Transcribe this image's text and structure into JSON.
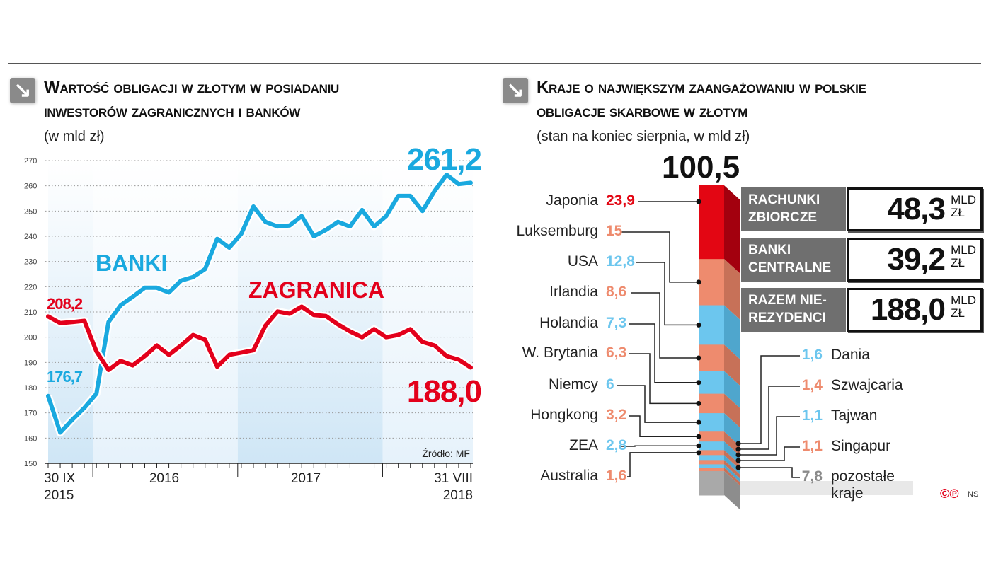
{
  "left": {
    "title_line1": "Wartość obligacji w złotym w posiadaniu",
    "title_line2": "inwestorów zagranicznych i banków",
    "subtitle": "(w mld zł)",
    "source": "Źródło: MF"
  },
  "right": {
    "title_line1": "Kraje o największym zaangażowaniu w polskie",
    "title_line2": "obligacje skarbowe w złotym",
    "subtitle": "(stan na koniec sierpnia, w mld zł)",
    "total": "100,5",
    "boxes": [
      {
        "label_line1": "RACHUNKI",
        "label_line2": "ZBIORCZE",
        "value": "48,3",
        "unit_line1": "MLD",
        "unit_line2": "ZŁ"
      },
      {
        "label_line1": "BANKI",
        "label_line2": "CENTRALNE",
        "value": "39,2",
        "unit_line1": "MLD",
        "unit_line2": "ZŁ"
      },
      {
        "label_line1": "RAZEM NIE-",
        "label_line2": "REZYDENCI",
        "value": "188,0",
        "unit_line1": "MLD",
        "unit_line2": "ZŁ"
      }
    ],
    "credit": "NS"
  },
  "colors": {
    "banki": "#1aa9df",
    "zagranica": "#e3001b",
    "seg_red": "#e30613",
    "seg_salmon": "#ee8b6e",
    "seg_blue": "#6cc6ee",
    "seg_grey": "#a9a9a9"
  },
  "chart_data": [
    {
      "type": "line",
      "ylim": [
        150,
        270
      ],
      "yticks": [
        150,
        160,
        170,
        180,
        190,
        200,
        210,
        220,
        230,
        240,
        250,
        260,
        270
      ],
      "x_start": "2015-09",
      "x_end": "2018-08",
      "x_step": "month",
      "xtick_labels": [
        "30 IX",
        "2015",
        "2016",
        "2017",
        "31 VIII",
        "2018"
      ],
      "grid": true,
      "series": [
        {
          "name": "BANKI",
          "color": "#1aa9df",
          "start_label": "176,7",
          "end_label": "261,2",
          "values": [
            176.7,
            162.2,
            167.3,
            172,
            177.6,
            206,
            212.6,
            216,
            219.6,
            219.6,
            217.7,
            222.4,
            223.8,
            227,
            239,
            235.5,
            241,
            251.8,
            245.7,
            243.9,
            244.3,
            248,
            240,
            242.5,
            245.7,
            243.9,
            250.4,
            243.9,
            248,
            256,
            256,
            250,
            257.9,
            264.4,
            260.7,
            261.2
          ]
        },
        {
          "name": "ZAGRANICA",
          "color": "#e3001b",
          "start_label": "208,2",
          "end_label": "188,0",
          "values": [
            208.2,
            205.6,
            206,
            206.5,
            194.4,
            187,
            190.6,
            188.8,
            192.5,
            196.7,
            193,
            196.7,
            200.9,
            199,
            188.3,
            193,
            193.9,
            194.8,
            204.6,
            210.2,
            209.3,
            212.1,
            208.8,
            208.4,
            205.1,
            202.3,
            200,
            203.2,
            200,
            200.9,
            203.2,
            198.1,
            196.7,
            192.5,
            191.1,
            188
          ]
        }
      ]
    },
    {
      "type": "bar",
      "stacked": true,
      "total": 100.5,
      "categories": [
        "Japonia",
        "Luksemburg",
        "USA",
        "Irlandia",
        "Holandia",
        "W. Brytania",
        "Niemcy",
        "Hongkong",
        "ZEA",
        "Australia",
        "Dania",
        "Szwajcaria",
        "Tajwan",
        "Singapur",
        "pozostałe kraje"
      ],
      "labels": [
        "23,9",
        "15",
        "12,8",
        "8,6",
        "7,3",
        "6,3",
        "6",
        "3,2",
        "2,8",
        "1,6",
        "1,6",
        "1,4",
        "1,1",
        "1,1",
        "7,8"
      ],
      "values": [
        23.9,
        15,
        12.8,
        8.6,
        7.3,
        6.3,
        6,
        3.2,
        2.8,
        1.6,
        1.6,
        1.4,
        1.1,
        1.1,
        7.8
      ],
      "colors": [
        "red",
        "salmon",
        "blue",
        "salmon",
        "blue",
        "salmon",
        "blue",
        "salmon",
        "blue",
        "salmon",
        "blue",
        "salmon",
        "blue",
        "salmon",
        "grey"
      ],
      "label_side": [
        "left",
        "left",
        "left",
        "left",
        "left",
        "left",
        "left",
        "left",
        "left",
        "left",
        "right",
        "right",
        "right",
        "right",
        "right"
      ]
    }
  ]
}
